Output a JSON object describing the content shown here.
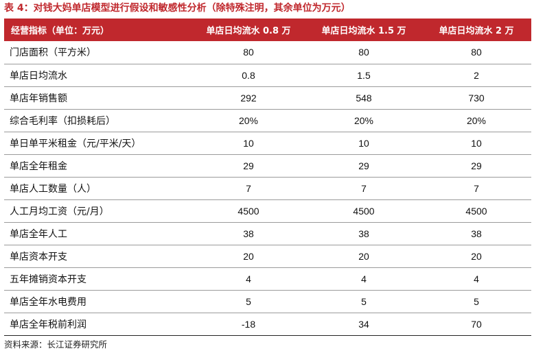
{
  "caption": {
    "prefix": "表 4：",
    "text": "对钱大妈单店模型进行假设和敏感性分析（除特殊注明，其余单位为万元）"
  },
  "table": {
    "headers": [
      "经营指标（单位：万元）",
      "单店日均流水 0.8 万",
      "单店日均流水 1.5 万",
      "单店日均流水 2 万"
    ],
    "rows": [
      [
        "门店面积（平方米）",
        "80",
        "80",
        "80"
      ],
      [
        "单店日均流水",
        "0.8",
        "1.5",
        "2"
      ],
      [
        "单店年销售额",
        "292",
        "548",
        "730"
      ],
      [
        "综合毛利率（扣损耗后）",
        "20%",
        "20%",
        "20%"
      ],
      [
        "单日单平米租金（元/平米/天）",
        "10",
        "10",
        "10"
      ],
      [
        "单店全年租金",
        "29",
        "29",
        "29"
      ],
      [
        "单店人工数量（人）",
        "7",
        "7",
        "7"
      ],
      [
        "人工月均工资（元/月）",
        "4500",
        "4500",
        "4500"
      ],
      [
        "单店全年人工",
        "38",
        "38",
        "38"
      ],
      [
        "单店资本开支",
        "20",
        "20",
        "20"
      ],
      [
        "五年摊销资本开支",
        "4",
        "4",
        "4"
      ],
      [
        "单店全年水电费用",
        "5",
        "5",
        "5"
      ],
      [
        "单店全年税前利润",
        "-18",
        "34",
        "70"
      ]
    ]
  },
  "source": "资料来源：长江证券研究所",
  "colors": {
    "accent": "#c0282d",
    "header_text": "#ffffff"
  }
}
